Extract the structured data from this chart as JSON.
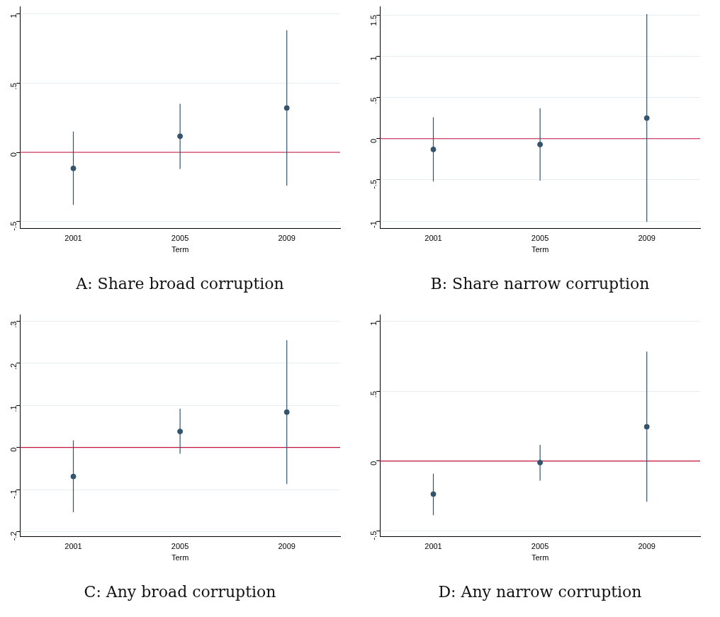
{
  "chart_data": [
    {
      "type": "scatter",
      "title": "A: Share broad corruption",
      "xlabel": "Term",
      "categories": [
        "2001",
        "2005",
        "2009"
      ],
      "grid": "y",
      "marker": "circle",
      "legend": false,
      "series": [
        {
          "color": "#34546e",
          "values": [
            -0.116,
            0.116,
            0.32
          ],
          "errors": [
            [
              -0.38,
              0.15
            ],
            [
              -0.12,
              0.35
            ],
            [
              -0.24,
              0.88
            ]
          ]
        }
      ],
      "ylim": [
        -0.55,
        1.05
      ],
      "yticks": [
        {
          "value": -0.5,
          "label": "-.5"
        },
        0,
        {
          "value": 0.5,
          "label": ".5"
        },
        1
      ],
      "ref_lines": [
        {
          "axis": "y",
          "value": 0,
          "color": "#c8103c"
        }
      ]
    },
    {
      "type": "scatter",
      "title": "B: Share narrow corruption",
      "xlabel": "Term",
      "categories": [
        "2001",
        "2005",
        "2009"
      ],
      "grid": "y",
      "marker": "circle",
      "legend": false,
      "series": [
        {
          "color": "#34546e",
          "values": [
            -0.13,
            -0.07,
            0.25
          ],
          "errors": [
            [
              -0.52,
              0.26
            ],
            [
              -0.51,
              0.37
            ],
            [
              -1.01,
              1.51
            ]
          ]
        }
      ],
      "ylim": [
        -1.09,
        1.6
      ],
      "yticks": [
        -1,
        {
          "value": -0.5,
          "label": "-.5"
        },
        0,
        {
          "value": 0.5,
          "label": ".5"
        },
        1,
        1.5
      ],
      "ref_lines": [
        {
          "axis": "y",
          "value": 0,
          "color": "#c8103c"
        }
      ]
    },
    {
      "type": "scatter",
      "title": "C: Any broad corruption",
      "xlabel": "Term",
      "categories": [
        "2001",
        "2005",
        "2009"
      ],
      "grid": "y",
      "marker": "circle",
      "legend": false,
      "series": [
        {
          "color": "#34546e",
          "values": [
            -0.069,
            0.038,
            0.084
          ],
          "errors": [
            [
              -0.154,
              0.017
            ],
            [
              -0.015,
              0.092
            ],
            [
              -0.087,
              0.255
            ]
          ]
        }
      ],
      "ylim": [
        -0.212,
        0.315
      ],
      "yticks": [
        {
          "value": -0.2,
          "label": "-.2"
        },
        {
          "value": -0.1,
          "label": "-.1"
        },
        0,
        {
          "value": 0.1,
          "label": ".1"
        },
        {
          "value": 0.2,
          "label": ".2"
        },
        {
          "value": 0.3,
          "label": ".3"
        }
      ],
      "ref_lines": [
        {
          "axis": "y",
          "value": 0,
          "color": "#c8103c"
        }
      ]
    },
    {
      "type": "scatter",
      "title": "D: Any narrow corruption",
      "xlabel": "Term",
      "categories": [
        "2001",
        "2005",
        "2009"
      ],
      "grid": "y",
      "marker": "circle",
      "legend": false,
      "series": [
        {
          "color": "#34546e",
          "values": [
            -0.236,
            -0.01,
            0.246
          ],
          "errors": [
            [
              -0.387,
              -0.09
            ],
            [
              -0.14,
              0.116
            ],
            [
              -0.29,
              0.784
            ]
          ]
        }
      ],
      "ylim": [
        -0.54,
        1.045
      ],
      "yticks": [
        {
          "value": -0.5,
          "label": "-.5"
        },
        0,
        {
          "value": 0.5,
          "label": ".5"
        },
        1
      ],
      "ref_lines": [
        {
          "axis": "y",
          "value": 0,
          "color": "#c8103c"
        }
      ]
    }
  ]
}
